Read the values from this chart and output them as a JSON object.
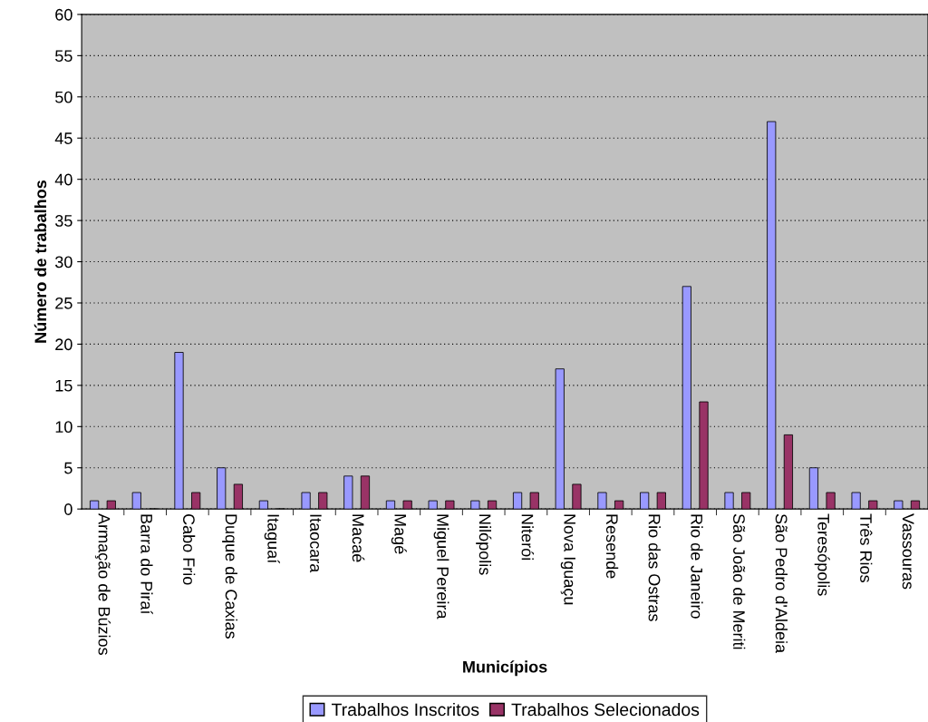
{
  "chart_data": {
    "type": "bar",
    "xlabel": "Municípios",
    "ylabel": "Número de trabalhos",
    "categories": [
      "Armação de Búzios",
      "Barra do Piraí",
      "Cabo Frio",
      "Duque de Caxias",
      "Itaguaí",
      "Itaocara",
      "Macaé",
      "Magé",
      "Miguel Pereira",
      "Nilópolis",
      "Niterói",
      "Nova Iguaçu",
      "Resende",
      "Rio das Ostras",
      "Rio de Janeiro",
      "São João de Meriti",
      "São Pedro d'Aldeia",
      "Teresópolis",
      "Três Rios",
      "Vassouras"
    ],
    "series": [
      {
        "name": "Trabalhos Inscritos",
        "color": "#9999ff",
        "values": [
          1,
          2,
          19,
          5,
          1,
          2,
          4,
          1,
          1,
          1,
          2,
          17,
          2,
          2,
          27,
          2,
          47,
          5,
          2,
          1
        ]
      },
      {
        "name": "Trabalhos Selecionados",
        "color": "#993366",
        "values": [
          1,
          0,
          2,
          3,
          0,
          2,
          4,
          1,
          1,
          1,
          2,
          3,
          1,
          2,
          13,
          2,
          9,
          2,
          1,
          1
        ]
      }
    ],
    "ylim": [
      0,
      60
    ],
    "yticks": [
      0,
      5,
      10,
      15,
      20,
      25,
      30,
      35,
      40,
      45,
      50,
      55,
      60
    ],
    "grid": "y",
    "legend": "bottom"
  }
}
